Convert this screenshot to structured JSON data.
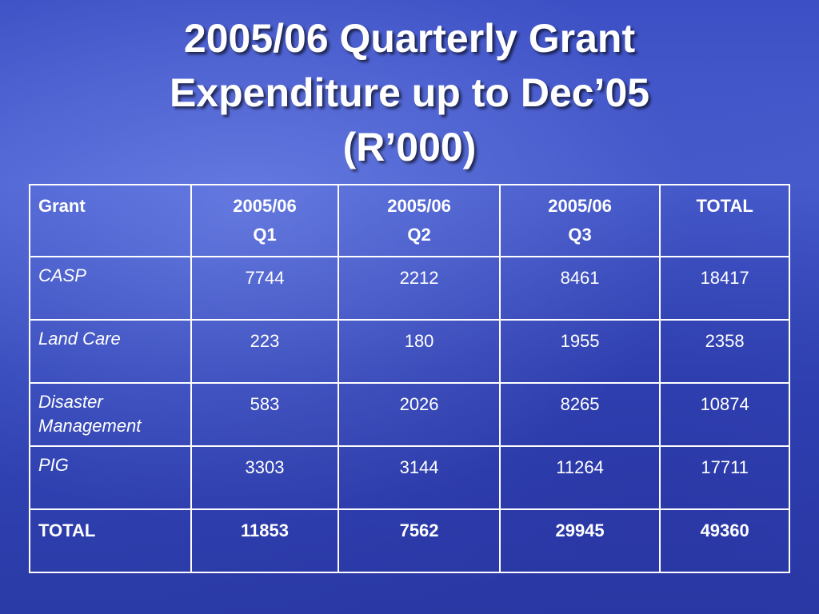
{
  "title": [
    "2005/06 Quarterly Grant",
    "Expenditure up to Dec’05",
    "(R’000)"
  ],
  "table": {
    "header": [
      [
        "Grant"
      ],
      [
        "2005/06",
        "Q1"
      ],
      [
        "2005/06",
        "Q2"
      ],
      [
        "2005/06",
        "Q3"
      ],
      [
        "TOTAL"
      ]
    ],
    "rows": [
      [
        "CASP",
        7744,
        2212,
        8461,
        18417
      ],
      [
        "Land Care",
        223,
        180,
        1955,
        2358
      ],
      [
        "Disaster Management",
        583,
        2026,
        8265,
        10874
      ],
      [
        "PIG",
        3303,
        3144,
        11264,
        17711
      ]
    ],
    "total": [
      "TOTAL",
      11853,
      7562,
      29945,
      49360
    ]
  }
}
